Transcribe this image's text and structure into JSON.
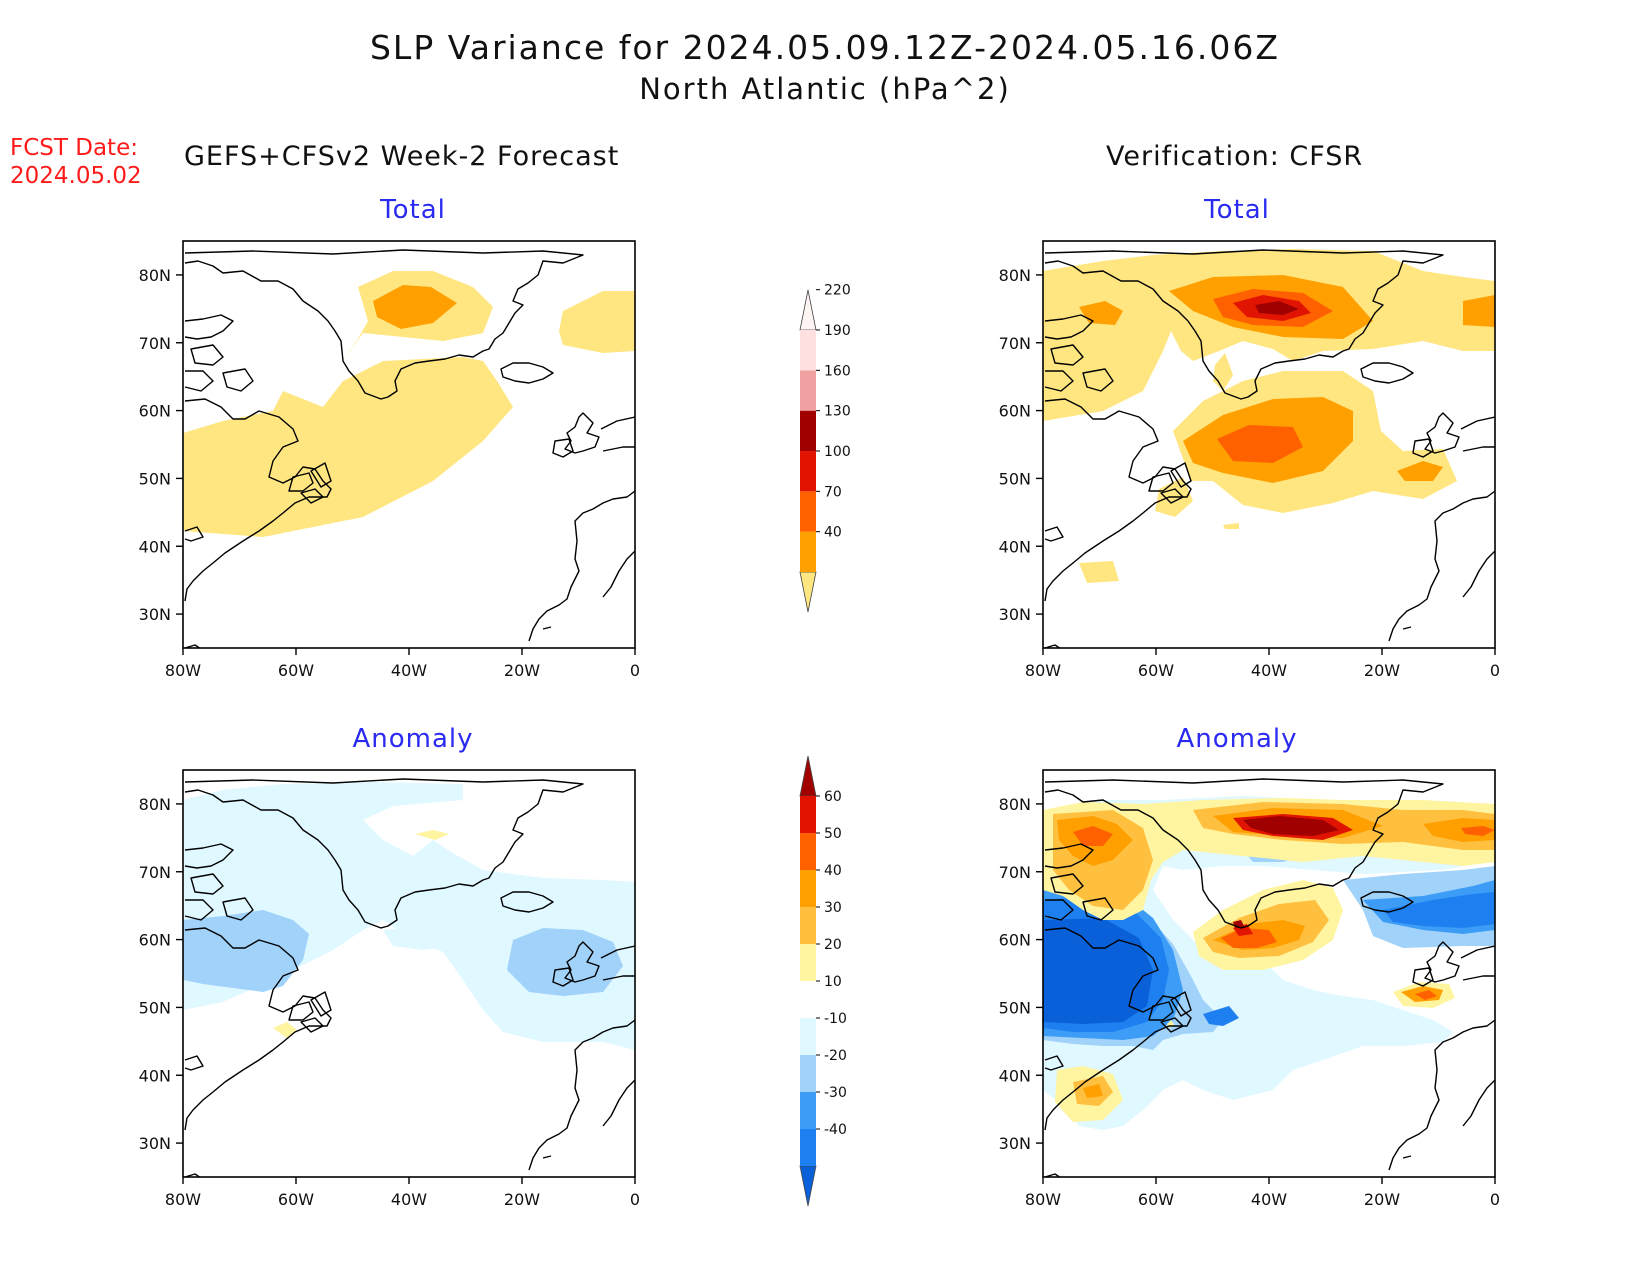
{
  "header": {
    "title": "SLP Variance for 2024.05.09.12Z-2024.05.16.06Z",
    "subtitle": "North Atlantic (hPa^2)",
    "fcst_label": "FCST Date:",
    "fcst_date": "2024.05.02",
    "left_column": "GEFS+CFSv2 Week-2 Forecast",
    "right_column": "Verification: CFSR"
  },
  "panels": {
    "forecast_total": {
      "title": "Total"
    },
    "forecast_anomaly": {
      "title": "Anomaly"
    },
    "verification_total": {
      "title": "Total"
    },
    "verification_anomaly": {
      "title": "Anomaly"
    }
  },
  "axes": {
    "lon_ticks": [
      "80W",
      "60W",
      "40W",
      "20W",
      "0"
    ],
    "lat_ticks": [
      "80N",
      "70N",
      "60N",
      "50N",
      "40N",
      "30N"
    ],
    "lon_range": [
      -80,
      0
    ],
    "lat_range": [
      25,
      85
    ]
  },
  "colorbars": {
    "total": {
      "labels": [
        "40",
        "70",
        "100",
        "130",
        "160",
        "190",
        "220"
      ],
      "colors": [
        "#ffe680",
        "#ffa000",
        "#ff6000",
        "#e01400",
        "#a00000",
        "#f0a0a0",
        "#ffe0e0",
        "#fff4f4"
      ]
    },
    "anomaly": {
      "labels": [
        "-40",
        "-30",
        "-20",
        "-10",
        "10",
        "20",
        "30",
        "40",
        "50",
        "60"
      ],
      "colors": [
        "#0a60d8",
        "#1e80f0",
        "#3c9cf6",
        "#a0d2fa",
        "#e0f8ff",
        "#ffffff",
        "#fff4a0",
        "#ffc040",
        "#ffa000",
        "#ff6000",
        "#e01400",
        "#a00000"
      ]
    }
  },
  "palette": {
    "yellow": "#ffe680",
    "orange": "#ffa000",
    "dark_orange": "#ff6000",
    "red": "#e01400",
    "dark_red": "#a00000",
    "pale_blue": "#e0f8ff",
    "light_blue": "#a0d2fa",
    "mid_blue": "#3c9cf6",
    "blue": "#1e80f0",
    "dark_blue": "#0a60d8",
    "pale_yellow": "#fff4a0",
    "light_orange": "#ffc040",
    "title_blue": "#2a2af0",
    "fcst_red": "#ff1a1a"
  }
}
